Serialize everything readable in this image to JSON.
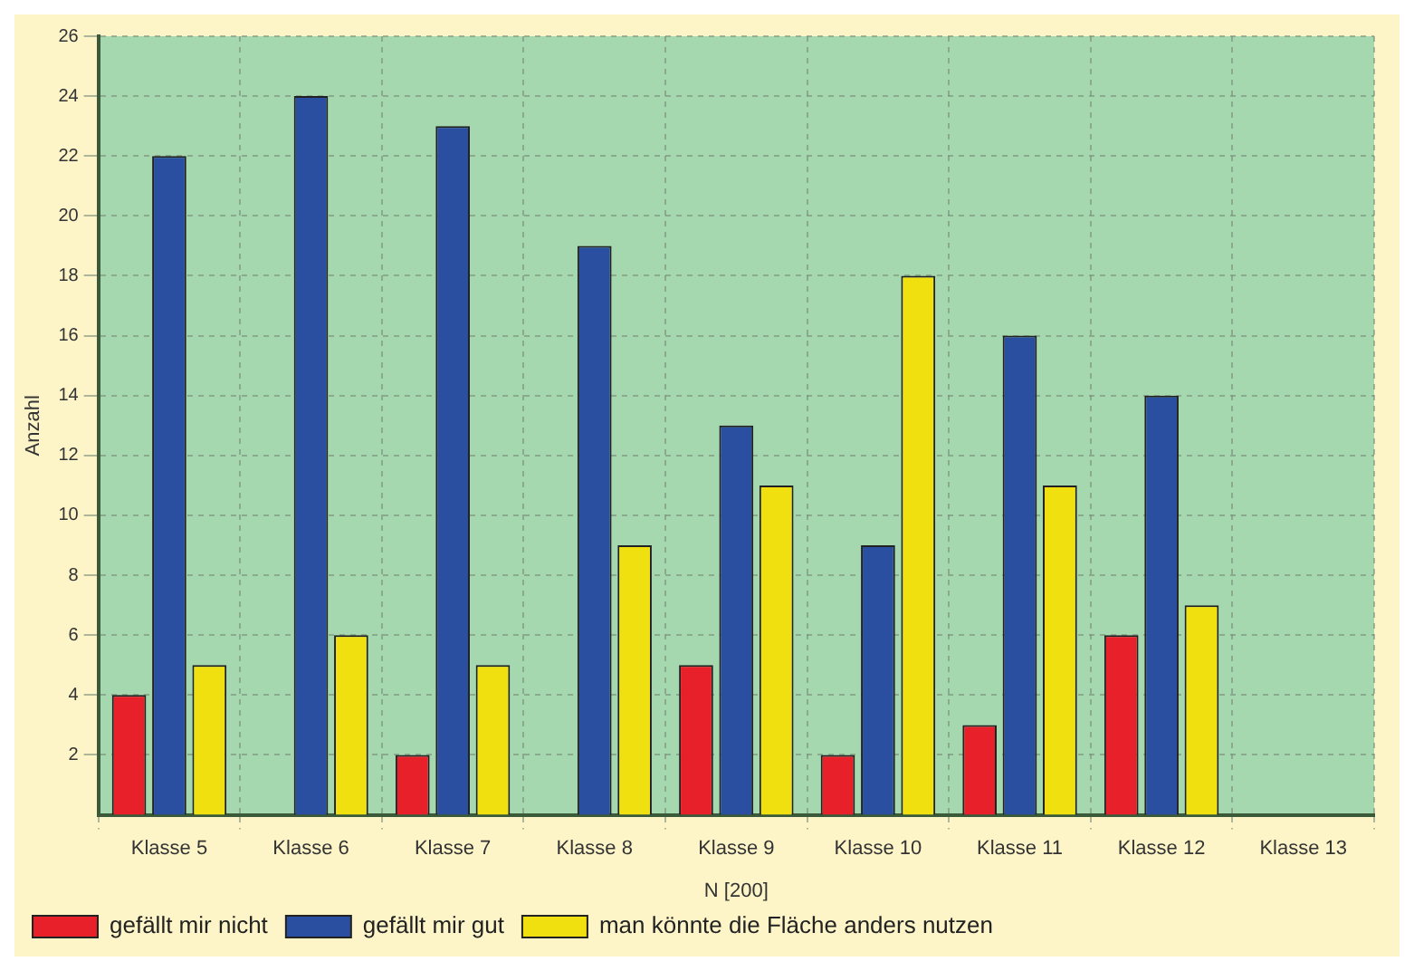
{
  "chart_data": {
    "type": "bar",
    "ylabel": "Anzahl",
    "categories": [
      "Klasse 5",
      "Klasse 6",
      "Klasse 7",
      "Klasse 8",
      "Klasse 9",
      "Klasse 10",
      "Klasse 11",
      "Klasse 12",
      "Klasse 13"
    ],
    "series": [
      {
        "name": "gefällt mir nicht",
        "color": "#e8202a",
        "values": [
          4,
          null,
          2,
          null,
          5,
          2,
          3,
          6,
          null
        ]
      },
      {
        "name": "gefällt mir gut",
        "color": "#2a4ea0",
        "values": [
          22,
          24,
          23,
          19,
          13,
          9,
          16,
          14,
          null
        ]
      },
      {
        "name": "man könnte die Fläche anders nutzen",
        "color": "#f0e010",
        "values": [
          5,
          6,
          5,
          9,
          11,
          18,
          11,
          7,
          null
        ]
      }
    ],
    "ylim": [
      0,
      26
    ],
    "yticks": [
      2,
      4,
      6,
      8,
      10,
      12,
      14,
      16,
      18,
      20,
      22,
      24,
      26
    ],
    "grid": true,
    "legend": "bottom",
    "annotations": [
      "N [200]"
    ]
  }
}
